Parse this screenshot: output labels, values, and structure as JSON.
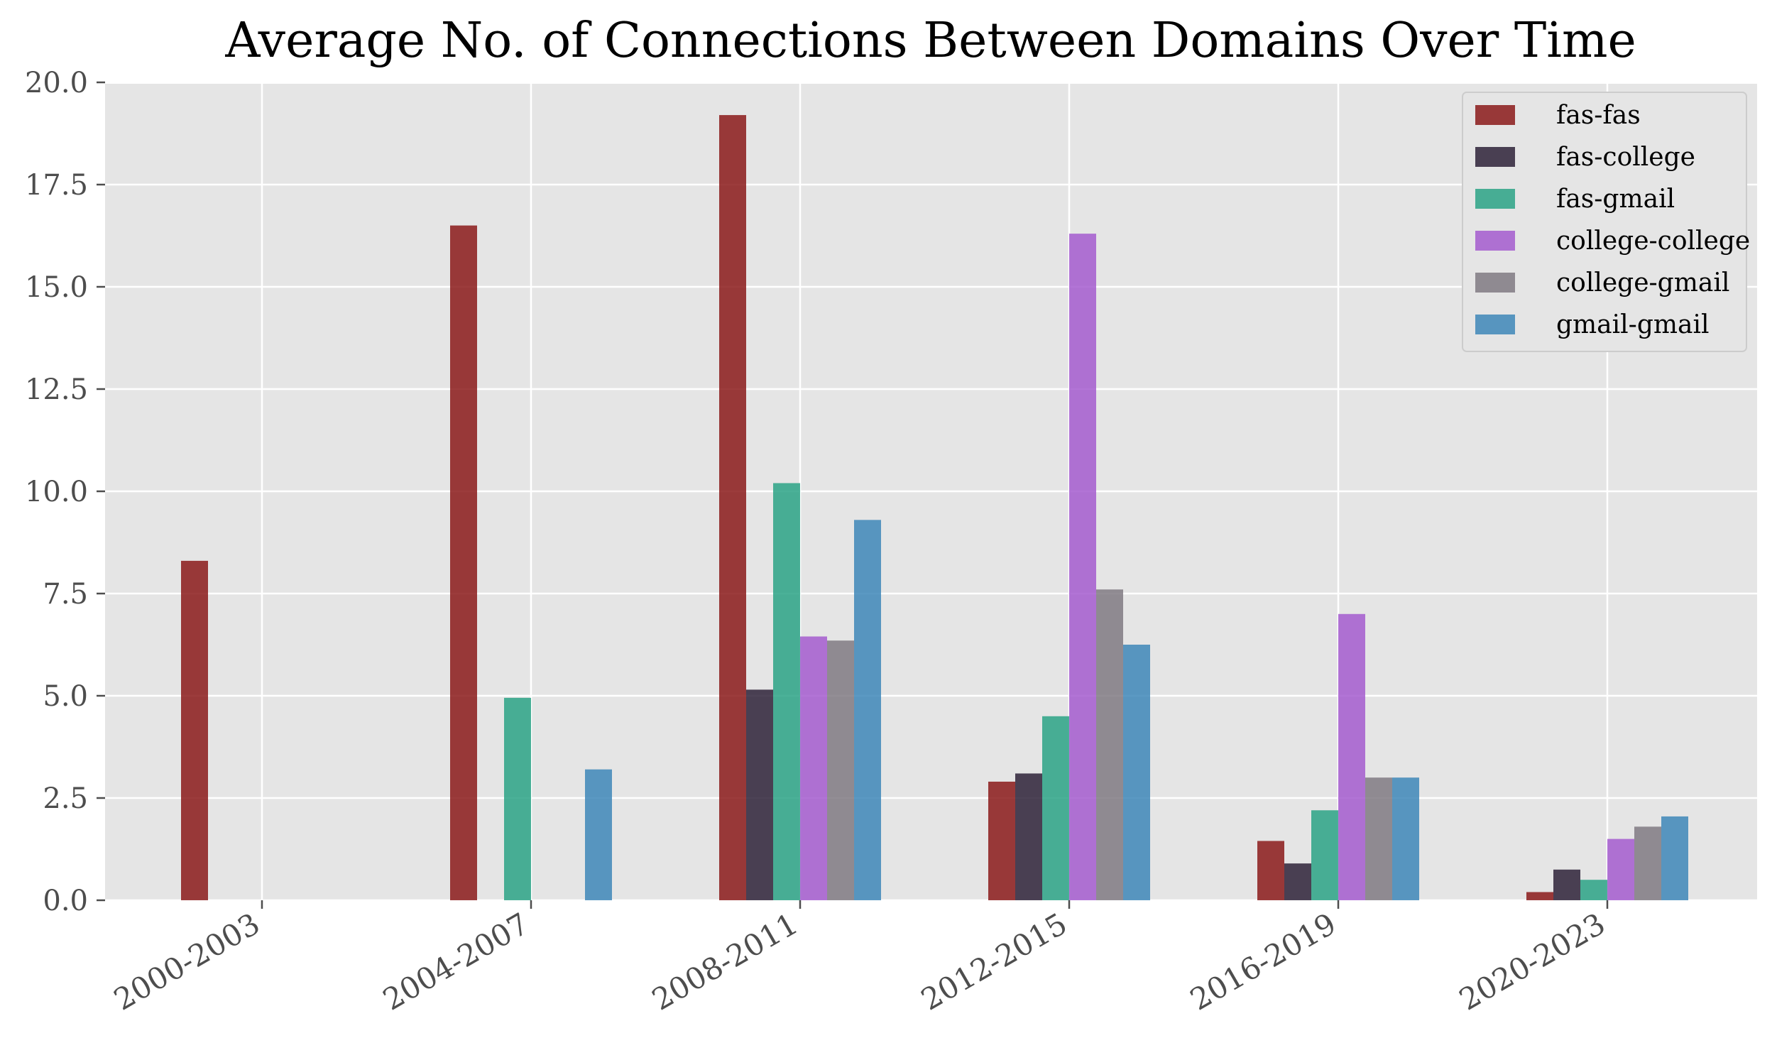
{
  "chart_data": {
    "type": "bar",
    "title": "Average No. of Connections Between Domains Over Time",
    "xlabel": "",
    "ylabel": "",
    "ylim": [
      0,
      20
    ],
    "yticks": [
      "0.0",
      "2.5",
      "5.0",
      "7.5",
      "10.0",
      "12.5",
      "15.0",
      "17.5",
      "20.0"
    ],
    "categories": [
      "2000-2003",
      "2004-2007",
      "2008-2011",
      "2012-2015",
      "2016-2019",
      "2020-2023"
    ],
    "series": [
      {
        "name": "fas-fas",
        "color": "#8b1a1a",
        "values": [
          8.3,
          16.5,
          19.2,
          2.9,
          1.45,
          0.2
        ]
      },
      {
        "name": "fas-college",
        "color": "#2e2238",
        "values": [
          0,
          0,
          5.15,
          3.1,
          0.9,
          0.75
        ]
      },
      {
        "name": "fas-gmail",
        "color": "#2ca386",
        "values": [
          0,
          4.95,
          10.2,
          4.5,
          2.2,
          0.5
        ]
      },
      {
        "name": "college-college",
        "color": "#a45ccf",
        "values": [
          0,
          0,
          6.45,
          16.3,
          7.0,
          1.5
        ]
      },
      {
        "name": "college-gmail",
        "color": "#807a82",
        "values": [
          0,
          0,
          6.35,
          7.6,
          3.0,
          1.8
        ]
      },
      {
        "name": "gmail-gmail",
        "color": "#3e87b8",
        "values": [
          0,
          3.2,
          9.3,
          6.25,
          3.0,
          2.05
        ]
      }
    ],
    "grid": true,
    "legend_position": "top-right",
    "background": "#e5e5e5"
  }
}
